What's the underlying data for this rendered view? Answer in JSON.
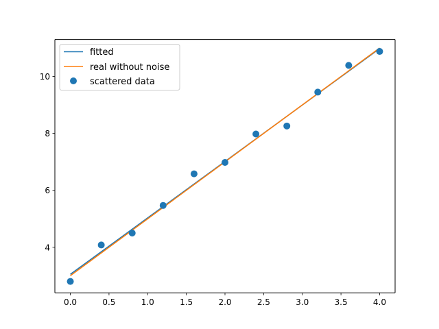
{
  "chart_data": {
    "type": "line",
    "title": "",
    "xlabel": "",
    "ylabel": "",
    "xlim": [
      -0.2,
      4.2
    ],
    "ylim": [
      2.4,
      11.3
    ],
    "x_ticks": [
      {
        "value": 0.0,
        "label": "0.0"
      },
      {
        "value": 0.5,
        "label": "0.5"
      },
      {
        "value": 1.0,
        "label": "1.0"
      },
      {
        "value": 1.5,
        "label": "1.5"
      },
      {
        "value": 2.0,
        "label": "2.0"
      },
      {
        "value": 2.5,
        "label": "2.5"
      },
      {
        "value": 3.0,
        "label": "3.0"
      },
      {
        "value": 3.5,
        "label": "3.5"
      },
      {
        "value": 4.0,
        "label": "4.0"
      }
    ],
    "y_ticks": [
      {
        "value": 4,
        "label": "4"
      },
      {
        "value": 6,
        "label": "6"
      },
      {
        "value": 8,
        "label": "8"
      },
      {
        "value": 10,
        "label": "10"
      }
    ],
    "grid": false,
    "legend_position": "top-left",
    "series": [
      {
        "name": "fitted",
        "kind": "line",
        "color": "#1f77b4",
        "x": [
          0,
          4
        ],
        "y": [
          3.05,
          10.98
        ]
      },
      {
        "name": "real without noise",
        "kind": "line",
        "color": "#ff7f0e",
        "x": [
          0,
          4
        ],
        "y": [
          3.0,
          11.0
        ]
      },
      {
        "name": "scattered data",
        "kind": "scatter",
        "color": "#1f77b4",
        "x": [
          0.0,
          0.4,
          0.8,
          1.2,
          1.6,
          2.0,
          2.4,
          2.8,
          3.2,
          3.6,
          4.0
        ],
        "y": [
          2.8,
          4.08,
          4.5,
          5.47,
          6.58,
          6.98,
          7.98,
          8.26,
          9.45,
          10.39,
          10.88
        ]
      }
    ]
  }
}
